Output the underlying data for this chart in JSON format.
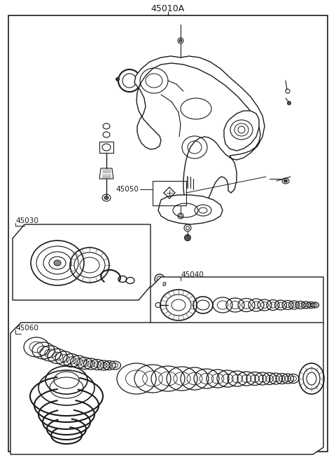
{
  "labels": {
    "main": "45010A",
    "sub1": "45030",
    "sub2": "45050",
    "sub3": "45040",
    "sub4": "45060"
  },
  "bg_color": "#ffffff",
  "line_color": "#1a1a1a",
  "fig_width": 4.8,
  "fig_height": 6.56,
  "dpi": 100
}
